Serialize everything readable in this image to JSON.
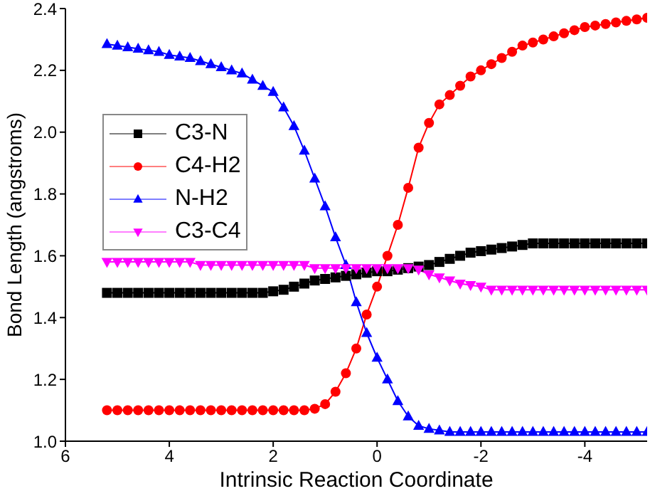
{
  "chart_data": {
    "type": "line",
    "xlabel": "Intrinsic Reaction Coordinate",
    "ylabel": "Bond Length (angstroms)",
    "x": [
      5.2,
      5.0,
      4.8,
      4.6,
      4.4,
      4.2,
      4.0,
      3.8,
      3.6,
      3.4,
      3.2,
      3.0,
      2.8,
      2.6,
      2.4,
      2.2,
      2.0,
      1.8,
      1.6,
      1.4,
      1.2,
      1.0,
      0.8,
      0.6,
      0.4,
      0.2,
      0,
      -0.2,
      -0.4,
      -0.6,
      -0.8,
      -1.0,
      -1.2,
      -1.4,
      -1.6,
      -1.8,
      -2.0,
      -2.2,
      -2.4,
      -2.6,
      -2.8,
      -3.0,
      -3.2,
      -3.4,
      -3.6,
      -3.8,
      -4.0,
      -4.2,
      -4.4,
      -4.6,
      -4.8,
      -5.0,
      -5.2
    ],
    "series": [
      {
        "name": "C3-N",
        "color": "#000000",
        "marker": "square",
        "values": [
          1.48,
          1.48,
          1.48,
          1.48,
          1.48,
          1.48,
          1.48,
          1.48,
          1.48,
          1.48,
          1.48,
          1.48,
          1.48,
          1.48,
          1.48,
          1.48,
          1.485,
          1.49,
          1.5,
          1.51,
          1.52,
          1.525,
          1.53,
          1.535,
          1.54,
          1.545,
          1.55,
          1.55,
          1.555,
          1.56,
          1.565,
          1.57,
          1.58,
          1.59,
          1.6,
          1.61,
          1.615,
          1.62,
          1.625,
          1.63,
          1.635,
          1.64,
          1.64,
          1.64,
          1.64,
          1.64,
          1.64,
          1.64,
          1.64,
          1.64,
          1.64,
          1.64,
          1.64
        ]
      },
      {
        "name": "C4-H2",
        "color": "#ff0000",
        "marker": "circle",
        "values": [
          1.1,
          1.1,
          1.1,
          1.1,
          1.1,
          1.1,
          1.1,
          1.1,
          1.1,
          1.1,
          1.1,
          1.1,
          1.1,
          1.1,
          1.1,
          1.1,
          1.1,
          1.1,
          1.1,
          1.1,
          1.105,
          1.12,
          1.16,
          1.22,
          1.3,
          1.41,
          1.5,
          1.6,
          1.7,
          1.82,
          1.95,
          2.03,
          2.09,
          2.12,
          2.15,
          2.18,
          2.2,
          2.22,
          2.24,
          2.26,
          2.28,
          2.29,
          2.3,
          2.31,
          2.32,
          2.33,
          2.34,
          2.345,
          2.35,
          2.355,
          2.36,
          2.365,
          2.37
        ]
      },
      {
        "name": "N-H2",
        "color": "#0000ff",
        "marker": "triangle",
        "values": [
          2.285,
          2.28,
          2.275,
          2.27,
          2.265,
          2.26,
          2.25,
          2.245,
          2.24,
          2.23,
          2.22,
          2.21,
          2.2,
          2.19,
          2.17,
          2.15,
          2.13,
          2.08,
          2.02,
          1.94,
          1.85,
          1.76,
          1.66,
          1.57,
          1.45,
          1.35,
          1.27,
          1.2,
          1.13,
          1.08,
          1.05,
          1.04,
          1.035,
          1.03,
          1.03,
          1.03,
          1.03,
          1.03,
          1.03,
          1.03,
          1.03,
          1.03,
          1.03,
          1.03,
          1.03,
          1.03,
          1.03,
          1.03,
          1.03,
          1.03,
          1.03,
          1.03,
          1.03
        ]
      },
      {
        "name": "C3-C4",
        "color": "#ff00ff",
        "marker": "triangle-down",
        "values": [
          1.58,
          1.58,
          1.58,
          1.58,
          1.58,
          1.58,
          1.58,
          1.58,
          1.58,
          1.57,
          1.57,
          1.57,
          1.57,
          1.57,
          1.57,
          1.57,
          1.57,
          1.57,
          1.57,
          1.57,
          1.56,
          1.56,
          1.56,
          1.56,
          1.56,
          1.56,
          1.56,
          1.56,
          1.56,
          1.56,
          1.555,
          1.54,
          1.53,
          1.52,
          1.51,
          1.505,
          1.5,
          1.49,
          1.49,
          1.49,
          1.49,
          1.49,
          1.49,
          1.49,
          1.49,
          1.49,
          1.49,
          1.49,
          1.49,
          1.49,
          1.49,
          1.49,
          1.49
        ]
      }
    ],
    "xlim": [
      6,
      -5.2
    ],
    "xticks": [
      6,
      4,
      2,
      0,
      -2,
      -4
    ],
    "ylim": [
      1.0,
      2.4
    ],
    "yticks": [
      {
        "value": 1.0,
        "label": "1.0"
      },
      {
        "value": 1.2,
        "label": "1.2"
      },
      {
        "value": 1.4,
        "label": "1.4"
      },
      {
        "value": 1.6,
        "label": "1.6"
      },
      {
        "value": 1.8,
        "label": "1.8"
      },
      {
        "value": 2.0,
        "label": "2.0"
      },
      {
        "value": 2.2,
        "label": "2.2"
      },
      {
        "value": 2.4,
        "label": "2.4"
      }
    ],
    "grid": false,
    "legend": "left",
    "line_style": "solid"
  }
}
